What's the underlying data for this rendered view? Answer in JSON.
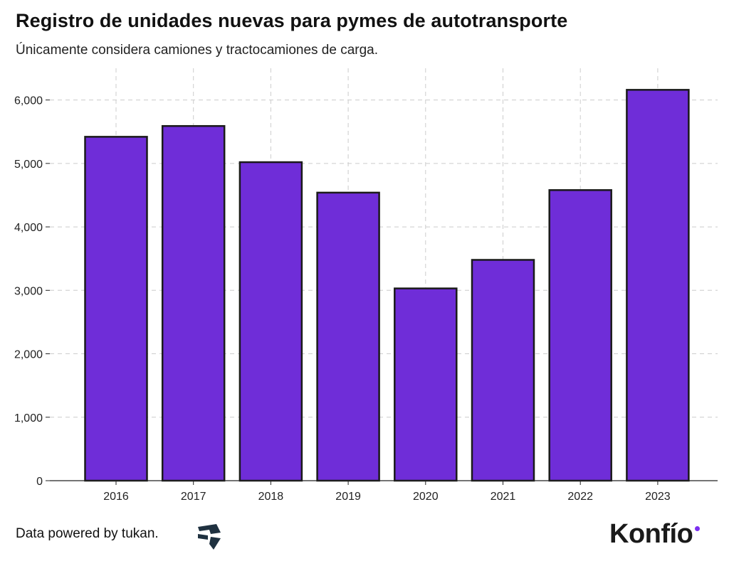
{
  "header": {
    "title": "Registro de unidades nuevas para pymes de autotransporte",
    "subtitle": "Únicamente considera camiones y tractocamiones de carga."
  },
  "footer": {
    "credit": "Data powered by tukan.",
    "credit_icon": "tukan-logo-icon",
    "brand": "Konfío"
  },
  "colors": {
    "bar_fill": "#6f2dd8",
    "bar_stroke": "#1a1a1a",
    "grid": "#cccccc",
    "brand_accent": "#7b2ff0",
    "tukan_dark": "#1f3140"
  },
  "chart_data": {
    "type": "bar",
    "categories": [
      "2016",
      "2017",
      "2018",
      "2019",
      "2020",
      "2021",
      "2022",
      "2023"
    ],
    "values": [
      5420,
      5590,
      5020,
      4540,
      3030,
      3480,
      4580,
      6160
    ],
    "ylim": [
      0,
      6500
    ],
    "yticks": [
      0,
      1000,
      2000,
      3000,
      4000,
      5000,
      6000
    ],
    "ytick_labels": [
      "0",
      "1,000",
      "2,000",
      "3,000",
      "4,000",
      "5,000",
      "6,000"
    ],
    "grid": true,
    "grid_style": "dashed",
    "xlabel": "",
    "ylabel": ""
  }
}
